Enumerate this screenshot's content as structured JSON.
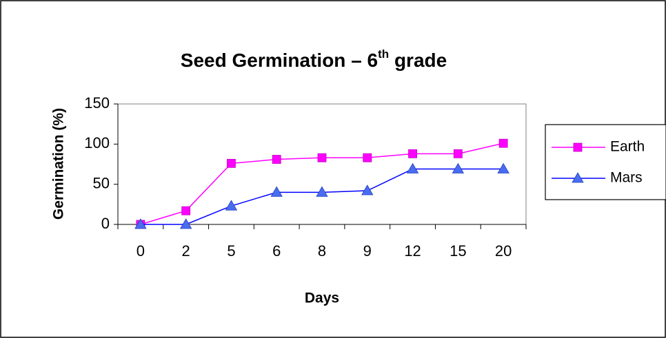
{
  "chart_data": {
    "type": "line",
    "title": {
      "main": "Seed Germination – 6",
      "superscript": "th",
      "end": " grade"
    },
    "x_label": "Days",
    "y_label": "Germination (%)",
    "categories": [
      "0",
      "2",
      "5",
      "6",
      "8",
      "9",
      "12",
      "15",
      "20"
    ],
    "series": [
      {
        "name": "Earth",
        "color": "#ff00ff",
        "marker": "square",
        "values": [
          0,
          17,
          76,
          81,
          83,
          83,
          88,
          88,
          101
        ]
      },
      {
        "name": "Mars",
        "color": "#0000ff",
        "marker_color": "#4a6cf0",
        "marker": "triangle",
        "values": [
          0,
          0,
          23,
          40,
          40,
          42,
          69,
          69,
          69
        ]
      }
    ],
    "ylim": [
      0,
      150
    ],
    "yticks": [
      0,
      50,
      100,
      150
    ],
    "grid": false,
    "legend": "right"
  }
}
